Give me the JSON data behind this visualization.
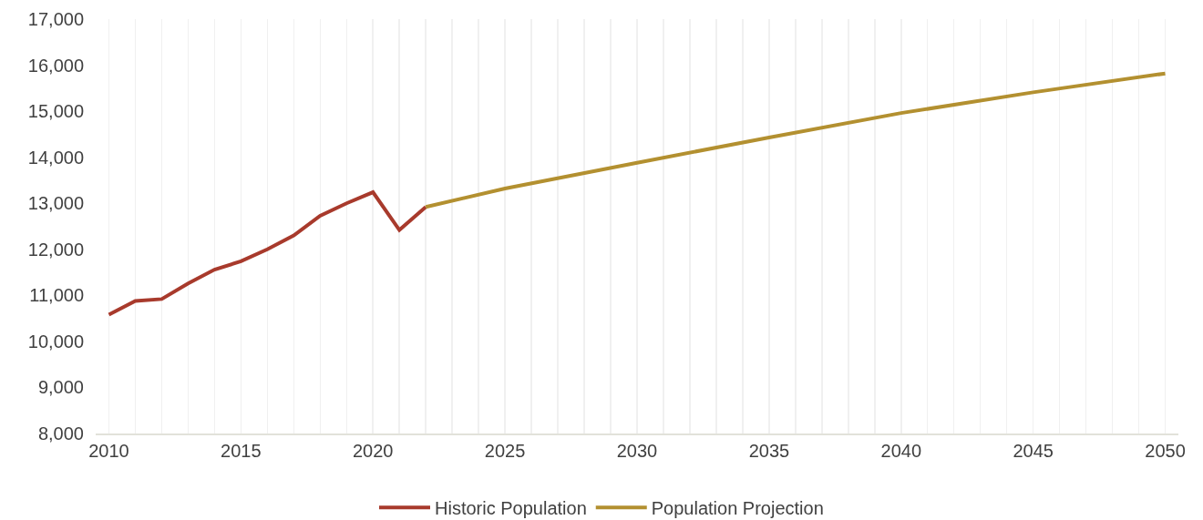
{
  "chart_data": {
    "type": "line",
    "series": [
      {
        "name": "Historic Population",
        "color": "#a83a2c",
        "x": [
          2010,
          2011,
          2012,
          2013,
          2014,
          2015,
          2016,
          2017,
          2018,
          2019,
          2020,
          2021,
          2022
        ],
        "values": [
          10580,
          10880,
          10920,
          11260,
          11560,
          11740,
          12000,
          12300,
          12730,
          13000,
          13240,
          12420,
          12920
        ]
      },
      {
        "name": "Population Projection",
        "color": "#b39030",
        "x": [
          2022,
          2025,
          2030,
          2035,
          2040,
          2045,
          2050
        ],
        "values": [
          12920,
          13320,
          13880,
          14430,
          14960,
          15410,
          15820
        ]
      }
    ],
    "xlim": [
      2009.5,
      2050.5
    ],
    "xticks": [
      2010,
      {
        "value": 2011,
        "label": null
      },
      {
        "value": 2012,
        "label": null
      },
      {
        "value": 2013,
        "label": null
      },
      {
        "value": 2014,
        "label": null
      },
      2015,
      {
        "value": 2016,
        "label": null
      },
      {
        "value": 2017,
        "label": null
      },
      {
        "value": 2018,
        "label": null
      },
      {
        "value": 2019,
        "label": null
      },
      2020,
      {
        "value": 2021,
        "label": null
      },
      {
        "value": 2022,
        "label": null
      },
      {
        "value": 2023,
        "label": null
      },
      {
        "value": 2024,
        "label": null
      },
      2025,
      {
        "value": 2026,
        "label": null
      },
      {
        "value": 2027,
        "label": null
      },
      {
        "value": 2028,
        "label": null
      },
      {
        "value": 2029,
        "label": null
      },
      2030,
      {
        "value": 2031,
        "label": null
      },
      {
        "value": 2032,
        "label": null
      },
      {
        "value": 2033,
        "label": null
      },
      {
        "value": 2034,
        "label": null
      },
      2035,
      {
        "value": 2036,
        "label": null
      },
      {
        "value": 2037,
        "label": null
      },
      {
        "value": 2038,
        "label": null
      },
      {
        "value": 2039,
        "label": null
      },
      2040,
      {
        "value": 2041,
        "label": null
      },
      {
        "value": 2042,
        "label": null
      },
      {
        "value": 2043,
        "label": null
      },
      {
        "value": 2044,
        "label": null
      },
      2045,
      {
        "value": 2046,
        "label": null
      },
      {
        "value": 2047,
        "label": null
      },
      {
        "value": 2048,
        "label": null
      },
      {
        "value": 2049,
        "label": null
      },
      2050
    ],
    "ylim": [
      8000,
      17000
    ],
    "yticks": [
      {
        "value": 8000,
        "label": "8,000"
      },
      {
        "value": 9000,
        "label": "9,000"
      },
      {
        "value": 10000,
        "label": "10,000"
      },
      {
        "value": 11000,
        "label": "11,000"
      },
      {
        "value": 12000,
        "label": "12,000"
      },
      {
        "value": 13000,
        "label": "13,000"
      },
      {
        "value": 14000,
        "label": "14,000"
      },
      {
        "value": 15000,
        "label": "15,000"
      },
      {
        "value": 16000,
        "label": "16,000"
      },
      {
        "value": 17000,
        "label": "17,000"
      }
    ],
    "grid": "x",
    "legend": "bottom",
    "line_style": "solid"
  }
}
